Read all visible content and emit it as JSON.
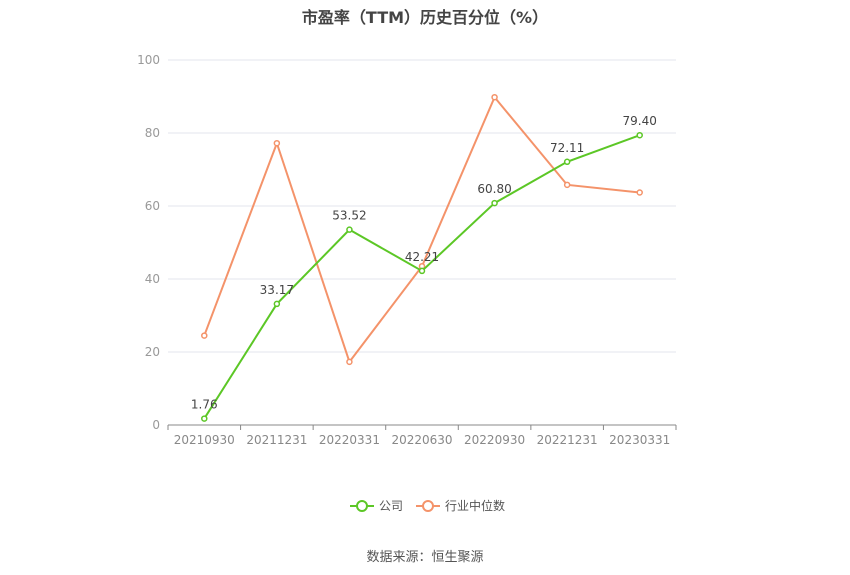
{
  "chart_data": {
    "type": "line",
    "title": "市盈率（TTM）历史百分位（%）",
    "categories": [
      "20210930",
      "20211231",
      "20220331",
      "20220630",
      "20220930",
      "20221231",
      "20230331"
    ],
    "ylim": [
      0,
      100
    ],
    "yticks": [
      0,
      20,
      40,
      60,
      80,
      100
    ],
    "grid": true,
    "series": [
      {
        "name": "公司",
        "color": "#5cc726",
        "values": [
          1.76,
          33.17,
          53.52,
          42.21,
          60.8,
          72.11,
          79.4
        ],
        "labels": [
          "1.76",
          "33.17",
          "53.52",
          "42.21",
          "60.80",
          "72.11",
          "79.40"
        ]
      },
      {
        "name": "行业中位数",
        "color": "#f4936a",
        "values": [
          24.5,
          77.2,
          17.3,
          43.5,
          89.8,
          65.8,
          63.7
        ]
      }
    ],
    "legend_position": "bottom-center"
  },
  "source": "数据来源：恒生聚源"
}
